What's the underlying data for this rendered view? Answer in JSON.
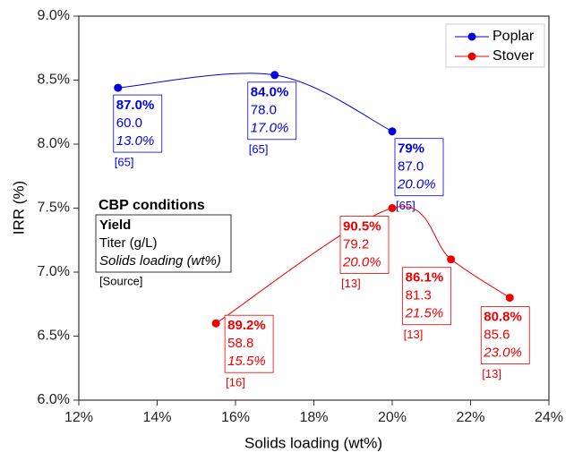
{
  "chart_data": {
    "type": "line",
    "x_label": "Solids loading (wt%)",
    "y_label": "IRR (%)",
    "xlim": [
      12,
      24
    ],
    "xticks": [
      {
        "value": 12,
        "label": "12%"
      },
      {
        "value": 14,
        "label": "14%"
      },
      {
        "value": 16,
        "label": "16%"
      },
      {
        "value": 18,
        "label": "18%"
      },
      {
        "value": 20,
        "label": "20%"
      },
      {
        "value": 22,
        "label": "22%"
      },
      {
        "value": 24,
        "label": "24%"
      }
    ],
    "ylim": [
      6.0,
      9.0
    ],
    "yticks": [
      {
        "value": 6.0,
        "label": "6.0%"
      },
      {
        "value": 6.5,
        "label": "6.5%"
      },
      {
        "value": 7.0,
        "label": "7.0%"
      },
      {
        "value": 7.5,
        "label": "7.5%"
      },
      {
        "value": 8.0,
        "label": "8.0%"
      },
      {
        "value": 8.5,
        "label": "8.5%"
      },
      {
        "value": 9.0,
        "label": "9.0%"
      }
    ],
    "grid": false,
    "legend": "top-right",
    "series": [
      {
        "name": "Poplar",
        "color": "#0000e0",
        "x": [
          13,
          17,
          20
        ],
        "values": [
          8.44,
          8.54,
          8.1
        ],
        "point_labels": [
          {
            "yield": "87.0%",
            "titer": "60.0",
            "solids": "13.0%",
            "source": "[65]"
          },
          {
            "yield": "84.0%",
            "titer": "78.0",
            "solids": "17.0%",
            "source": "[65]"
          },
          {
            "yield": "79%",
            "titer": "87.0",
            "solids": "20.0%",
            "source": "[65]"
          }
        ]
      },
      {
        "name": "Stover",
        "color": "#ee0000",
        "x": [
          15.5,
          20,
          21.5,
          23
        ],
        "values": [
          6.6,
          7.5,
          7.1,
          6.8
        ],
        "point_labels": [
          {
            "yield": "89.2%",
            "titer": "58.8",
            "solids": "15.5%",
            "source": "[16]"
          },
          {
            "yield": "90.5%",
            "titer": "79.2",
            "solids": "20.0%",
            "source": "[13]"
          },
          {
            "yield": "86.1%",
            "titer": "81.3",
            "solids": "21.5%",
            "source": "[13]"
          },
          {
            "yield": "80.8%",
            "titer": "85.6",
            "solids": "23.0%",
            "source": "[13]"
          }
        ]
      }
    ],
    "key_box": {
      "title": "CBP conditions",
      "yield": "Yield",
      "titer": "Titer (g/L)",
      "solids": "Solids loading (wt%)",
      "source": "[Source]"
    }
  }
}
